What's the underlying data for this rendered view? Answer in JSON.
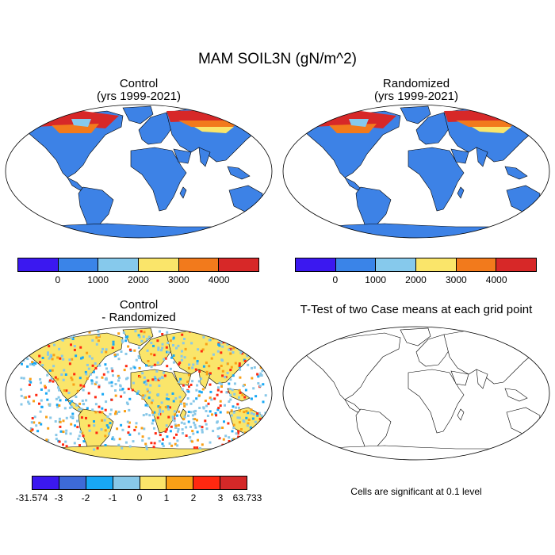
{
  "title": "MAM SOIL3N (gN/m^2)",
  "panels": {
    "control": {
      "title_line1": "Control",
      "title_line2": "(yrs 1999-2021)"
    },
    "randomized": {
      "title_line1": "Randomized",
      "title_line2": "(yrs 1999-2021)"
    },
    "difference": {
      "title_line1": "Control",
      "title_line2": "- Randomized"
    },
    "ttest": {
      "title": "T-Test of two Case means at each grid point",
      "note": "Cells are significant at 0.1 level"
    }
  },
  "colors": {
    "ocean": "#ffffff",
    "land_abs": "#3d82e6",
    "coast": "#000000",
    "significant": "#e00000"
  },
  "colorbars": {
    "absolute": {
      "colors": [
        "#3b18f0",
        "#3a84e8",
        "#86c9ec",
        "#fae56a",
        "#f27a1c",
        "#d72828"
      ],
      "labels": [
        "0",
        "1000",
        "2000",
        "3000",
        "4000"
      ]
    },
    "difference": {
      "colors": [
        "#3b18f0",
        "#3d6ad8",
        "#18a8f5",
        "#88c8e8",
        "#fae56a",
        "#f9a016",
        "#ff2810",
        "#d42828"
      ],
      "labels": [
        "-31.574",
        "-3",
        "-2",
        "-1",
        "0",
        "1",
        "2",
        "3",
        "63.733"
      ]
    }
  }
}
